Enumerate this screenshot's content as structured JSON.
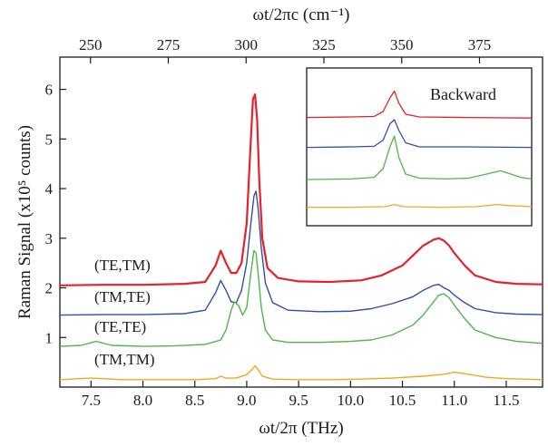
{
  "chart_data": {
    "type": "line",
    "xlabel": "ωt/2π (THz)",
    "ylabel": "Raman Signal (x10⁵ counts)",
    "top_xlabel": "ωt/2πc (cm⁻¹)",
    "xlim": [
      7.2,
      11.85
    ],
    "ylim": [
      0,
      6.65
    ],
    "x_ticks": [
      "7.5",
      "8.0",
      "8.5",
      "9.0",
      "9.5",
      "10.0",
      "10.5",
      "11.0",
      "11.5"
    ],
    "x_tick_values": [
      7.5,
      8.0,
      8.5,
      9.0,
      9.5,
      10.0,
      10.5,
      11.0,
      11.5
    ],
    "y_ticks": [
      "1",
      "2",
      "3",
      "4",
      "5",
      "6"
    ],
    "y_tick_values": [
      1,
      2,
      3,
      4,
      5,
      6
    ],
    "top_ticks": [
      "250",
      "275",
      "300",
      "325",
      "350",
      "375"
    ],
    "top_tick_values_cm": [
      250,
      275,
      300,
      325,
      350,
      375
    ],
    "cm_per_thz": 33.356,
    "grid": false,
    "series": [
      {
        "name": "(TE,TM)",
        "color": "#e8202a",
        "x": [
          7.2,
          7.6,
          8.0,
          8.4,
          8.6,
          8.7,
          8.75,
          8.8,
          8.85,
          8.9,
          8.95,
          9.0,
          9.03,
          9.06,
          9.08,
          9.1,
          9.12,
          9.15,
          9.2,
          9.3,
          9.5,
          9.8,
          10.1,
          10.3,
          10.5,
          10.6,
          10.7,
          10.8,
          10.85,
          10.9,
          10.95,
          11.0,
          11.1,
          11.2,
          11.4,
          11.6,
          11.85
        ],
        "values": [
          2.05,
          2.06,
          2.06,
          2.08,
          2.12,
          2.45,
          2.75,
          2.5,
          2.3,
          2.3,
          2.5,
          3.3,
          4.6,
          5.8,
          5.9,
          5.4,
          4.2,
          3.0,
          2.4,
          2.2,
          2.13,
          2.12,
          2.15,
          2.25,
          2.45,
          2.65,
          2.85,
          2.97,
          3.0,
          2.95,
          2.85,
          2.7,
          2.45,
          2.25,
          2.12,
          2.08,
          2.07
        ]
      },
      {
        "name": "(TM,TE)",
        "color": "#2f4fa8",
        "x": [
          7.2,
          7.6,
          8.0,
          8.4,
          8.6,
          8.7,
          8.75,
          8.8,
          8.85,
          8.9,
          8.95,
          9.0,
          9.04,
          9.07,
          9.09,
          9.11,
          9.14,
          9.18,
          9.25,
          9.4,
          9.7,
          10.0,
          10.2,
          10.4,
          10.6,
          10.7,
          10.8,
          10.85,
          10.9,
          10.95,
          11.0,
          11.1,
          11.2,
          11.4,
          11.6,
          11.85
        ],
        "values": [
          1.45,
          1.46,
          1.46,
          1.48,
          1.55,
          1.9,
          2.15,
          1.95,
          1.72,
          1.7,
          1.95,
          2.5,
          3.3,
          3.85,
          3.95,
          3.6,
          2.8,
          2.1,
          1.7,
          1.55,
          1.52,
          1.53,
          1.58,
          1.68,
          1.82,
          1.95,
          2.05,
          2.07,
          2.0,
          1.95,
          1.85,
          1.7,
          1.58,
          1.5,
          1.47,
          1.46
        ]
      },
      {
        "name": "(TE,TE)",
        "color": "#4db848",
        "x": [
          7.2,
          7.4,
          7.55,
          7.7,
          8.0,
          8.3,
          8.6,
          8.75,
          8.8,
          8.85,
          8.88,
          8.92,
          8.96,
          9.0,
          9.04,
          9.07,
          9.09,
          9.11,
          9.14,
          9.18,
          9.25,
          9.4,
          9.7,
          10.0,
          10.2,
          10.4,
          10.6,
          10.7,
          10.8,
          10.85,
          10.9,
          10.95,
          11.0,
          11.1,
          11.2,
          11.4,
          11.6,
          11.85
        ],
        "values": [
          0.82,
          0.84,
          0.92,
          0.84,
          0.82,
          0.83,
          0.86,
          0.95,
          1.15,
          1.55,
          1.72,
          1.65,
          1.45,
          1.6,
          2.3,
          2.75,
          2.7,
          2.3,
          1.6,
          1.15,
          0.95,
          0.9,
          0.9,
          0.92,
          0.95,
          1.05,
          1.25,
          1.45,
          1.72,
          1.85,
          1.88,
          1.8,
          1.65,
          1.38,
          1.15,
          1.0,
          0.92,
          0.88
        ]
      },
      {
        "name": "(TM,TM)",
        "color": "#f5a623",
        "x": [
          7.2,
          7.5,
          7.8,
          8.2,
          8.5,
          8.7,
          8.75,
          8.8,
          8.9,
          9.0,
          9.05,
          9.08,
          9.11,
          9.15,
          9.25,
          9.5,
          9.8,
          10.1,
          10.4,
          10.7,
          10.9,
          11.0,
          11.1,
          11.3,
          11.5,
          11.85
        ],
        "values": [
          0.15,
          0.18,
          0.15,
          0.15,
          0.15,
          0.17,
          0.22,
          0.18,
          0.18,
          0.25,
          0.35,
          0.43,
          0.35,
          0.22,
          0.16,
          0.15,
          0.15,
          0.16,
          0.18,
          0.22,
          0.26,
          0.3,
          0.27,
          0.2,
          0.17,
          0.15
        ]
      }
    ],
    "inset": {
      "title": "Backward",
      "series": [
        {
          "name": "(TE,TM)",
          "color": "#e8202a",
          "offset": 3.3,
          "x": [
            0,
            0.2,
            0.3,
            0.34,
            0.37,
            0.39,
            0.41,
            0.44,
            0.5,
            0.7,
            1.0
          ],
          "values": [
            0.08,
            0.1,
            0.12,
            0.3,
            0.8,
            1.05,
            0.6,
            0.2,
            0.1,
            0.08,
            0.06
          ]
        },
        {
          "name": "(TM,TE)",
          "color": "#2f4fa8",
          "offset": 2.2,
          "x": [
            0,
            0.2,
            0.3,
            0.34,
            0.37,
            0.39,
            0.41,
            0.44,
            0.5,
            0.7,
            1.0
          ],
          "values": [
            0.08,
            0.1,
            0.12,
            0.35,
            0.95,
            1.1,
            0.7,
            0.25,
            0.1,
            0.1,
            0.08
          ]
        },
        {
          "name": "(TE,TE)",
          "color": "#4db848",
          "offset": 1.0,
          "x": [
            0,
            0.2,
            0.3,
            0.34,
            0.37,
            0.39,
            0.41,
            0.44,
            0.5,
            0.62,
            0.72,
            0.8,
            0.86,
            0.9,
            0.95,
            1.0
          ],
          "values": [
            0.1,
            0.12,
            0.18,
            0.5,
            1.3,
            1.7,
            0.9,
            0.3,
            0.15,
            0.12,
            0.15,
            0.3,
            0.42,
            0.32,
            0.18,
            0.12
          ]
        },
        {
          "name": "(TM,TM)",
          "color": "#f5a623",
          "offset": 0.0,
          "x": [
            0,
            0.2,
            0.35,
            0.39,
            0.43,
            0.6,
            0.75,
            0.85,
            0.9,
            1.0
          ],
          "values": [
            0.08,
            0.08,
            0.1,
            0.18,
            0.1,
            0.08,
            0.1,
            0.18,
            0.14,
            0.1
          ]
        }
      ]
    }
  }
}
